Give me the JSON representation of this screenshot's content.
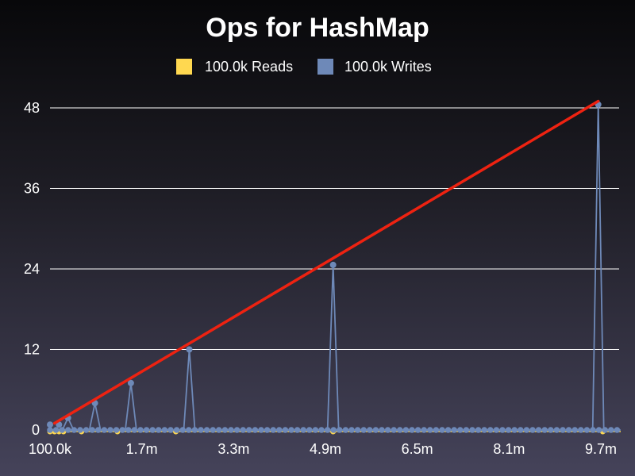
{
  "chart_data": {
    "type": "line",
    "title": "Ops for HashMap",
    "legend": {
      "placement": "top-center"
    },
    "grid": true,
    "ylim": [
      0,
      48
    ],
    "y_ticks": [
      "0",
      "12",
      "24",
      "36",
      "48"
    ],
    "x_tick_labels": [
      "100.0k",
      "1.7m",
      "3.3m",
      "4.9m",
      "6.5m",
      "8.1m",
      "9.7m"
    ],
    "series": [
      {
        "name": "100.0k Reads",
        "color": "#ffd850",
        "points": [
          [
            100000,
            0
          ],
          [
            200000,
            0
          ],
          [
            300000,
            0
          ],
          [
            400000,
            0
          ],
          [
            800000,
            0
          ],
          [
            1600000,
            0
          ],
          [
            2900000,
            0
          ],
          [
            6400000,
            0
          ],
          [
            12400000,
            0
          ]
        ],
        "baseline": 0
      },
      {
        "name": "100.0k Writes",
        "color": "#6e89b8",
        "points": [
          [
            100000,
            0.8
          ],
          [
            300000,
            0.8
          ],
          [
            500000,
            1.8
          ],
          [
            1100000,
            4
          ],
          [
            1900000,
            7
          ],
          [
            3200000,
            12
          ],
          [
            6400000,
            24.6
          ],
          [
            12300000,
            48.5
          ]
        ],
        "baseline": 0
      }
    ],
    "trendline": {
      "color": "#ee2211",
      "from": [
        200000,
        1
      ],
      "to": [
        12300000,
        49
      ]
    }
  }
}
